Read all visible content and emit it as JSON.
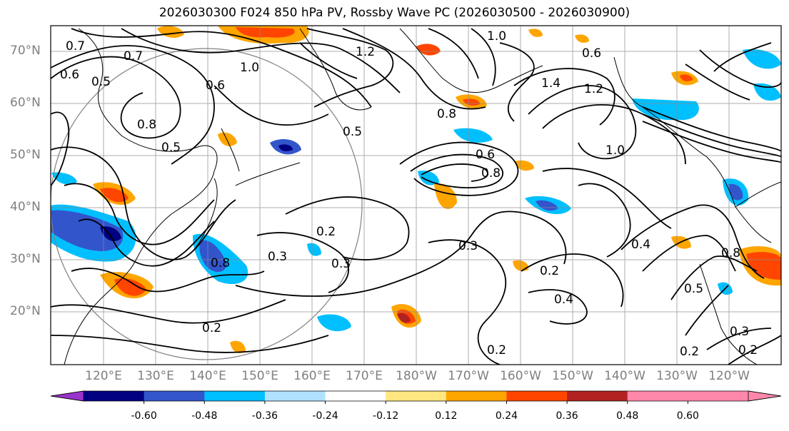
{
  "title": "2026030300 F024 850 hPa PV, Rossby Wave PC (2026030500 - 2026030900)",
  "lat_labels": [
    "70°N",
    "60°N",
    "50°N",
    "40°N",
    "30°N",
    "20°N"
  ],
  "lon_labels": [
    "120°E",
    "130°E",
    "140°E",
    "150°E",
    "160°E",
    "170°E",
    "180°W",
    "170°W",
    "160°W",
    "150°W",
    "140°W",
    "130°W",
    "120°W"
  ],
  "contour_labels": [
    "0.7",
    "0.6",
    "0.7",
    "0.5",
    "0.6",
    "1.0",
    "1.2",
    "1.0",
    "0.6",
    "1.4",
    "1.2",
    "1.0",
    "0.8",
    "0.5",
    "0.8",
    "0.6",
    "0.8",
    "0.5",
    "0.2",
    "0.3",
    "0.3",
    "0.8",
    "0.3",
    "0.2",
    "0.4",
    "0.2",
    "0.5",
    "0.8",
    "0.2",
    "0.4",
    "0.2",
    "0.3",
    "0.2"
  ],
  "colorbar": {
    "ticks": [
      "-0.60",
      "-0.48",
      "-0.36",
      "-0.24",
      "-0.12",
      "0.12",
      "0.24",
      "0.36",
      "0.48",
      "0.60"
    ],
    "colors": [
      "#9933cc",
      "#000080",
      "#3355cc",
      "#00bfff",
      "#b0e2ff",
      "#ffffff",
      "#ffe680",
      "#ffa500",
      "#ff4500",
      "#b22222",
      "#ff88aa",
      "#ff88aa"
    ]
  },
  "legend": {
    "fill_colors": {
      "neg_strong": "#000080",
      "neg_mid": "#3355cc",
      "neg_light": "#00bfff",
      "pos_light": "#ffa500",
      "pos_mid": "#ff4500",
      "pos_strong": "#b22222"
    }
  }
}
